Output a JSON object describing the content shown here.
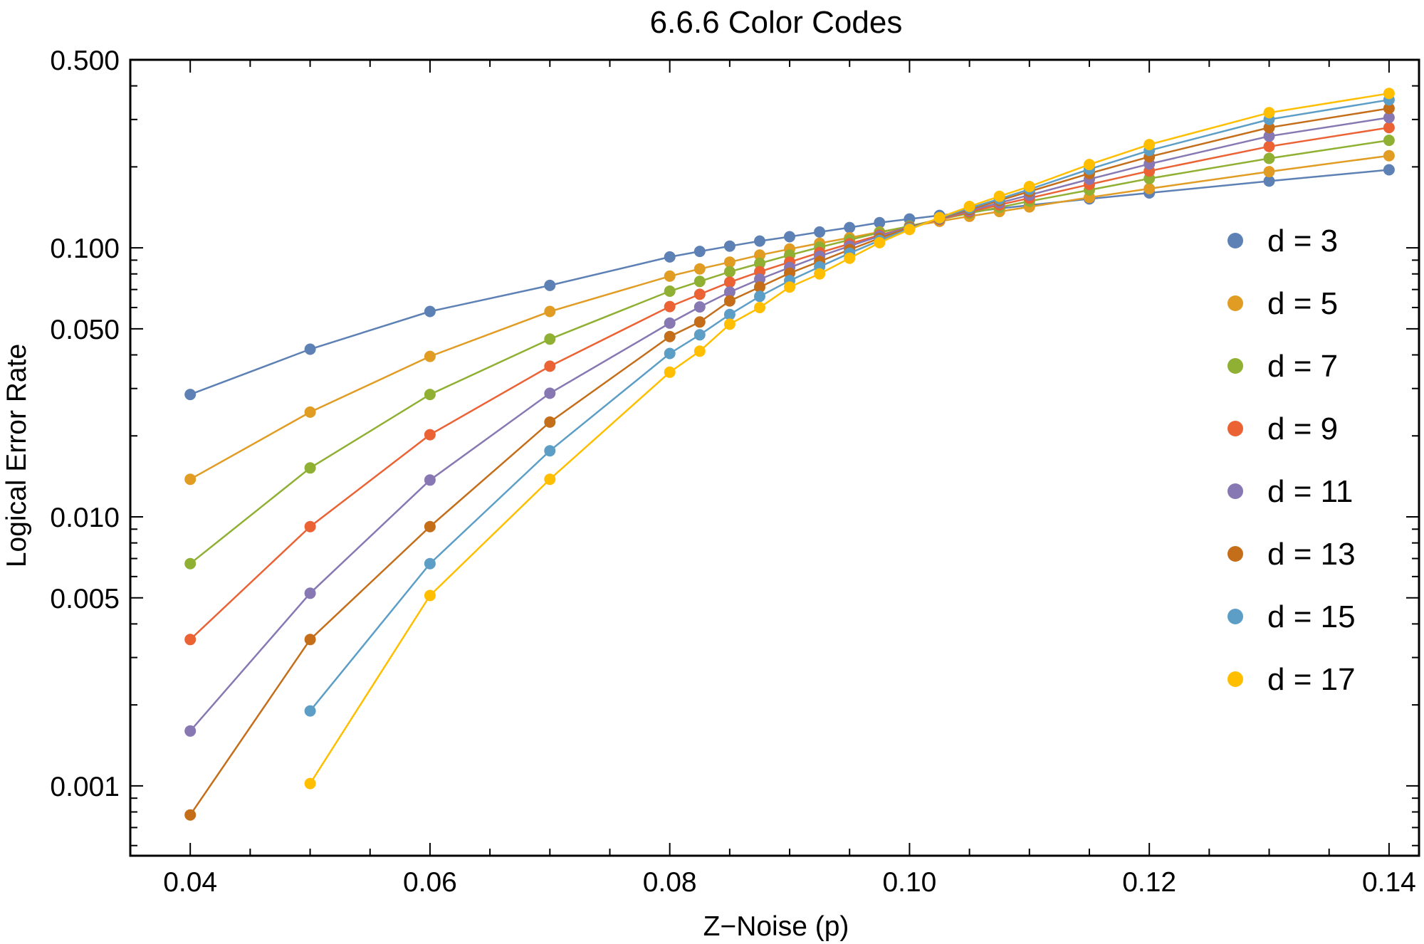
{
  "chart_data": {
    "type": "line",
    "title": "6.6.6 Color Codes",
    "xlabel": "Z−Noise (p)",
    "ylabel": "Logical Error Rate",
    "xscale": "linear",
    "yscale": "log",
    "xlim": [
      0.035,
      0.1425
    ],
    "ylim": [
      0.00055,
      0.5
    ],
    "grid": false,
    "legend_position": "right",
    "x_ticks": [
      {
        "value": 0.04,
        "label": "0.04"
      },
      {
        "value": 0.06,
        "label": "0.06"
      },
      {
        "value": 0.08,
        "label": "0.08"
      },
      {
        "value": 0.1,
        "label": "0.10"
      },
      {
        "value": 0.12,
        "label": "0.12"
      },
      {
        "value": 0.14,
        "label": "0.14"
      }
    ],
    "y_ticks": [
      {
        "value": 0.5,
        "label": "0.500"
      },
      {
        "value": 0.1,
        "label": "0.100"
      },
      {
        "value": 0.05,
        "label": "0.050"
      },
      {
        "value": 0.01,
        "label": "0.010"
      },
      {
        "value": 0.005,
        "label": "0.005"
      },
      {
        "value": 0.001,
        "label": "0.001"
      }
    ],
    "series": [
      {
        "name": "d = 3",
        "color": "#5e81b5",
        "x": [
          0.04,
          0.05,
          0.06,
          0.07,
          0.08,
          0.0825,
          0.085,
          0.0875,
          0.09,
          0.0925,
          0.095,
          0.0975,
          0.1,
          0.1025,
          0.105,
          0.1075,
          0.11,
          0.115,
          0.12,
          0.13,
          0.14
        ],
        "y": [
          0.0285,
          0.042,
          0.058,
          0.0725,
          0.0925,
          0.097,
          0.1015,
          0.106,
          0.11,
          0.1145,
          0.119,
          0.124,
          0.128,
          0.132,
          0.136,
          0.14,
          0.144,
          0.152,
          0.16,
          0.177,
          0.195
        ]
      },
      {
        "name": "d = 5",
        "color": "#e19c24",
        "x": [
          0.04,
          0.05,
          0.06,
          0.07,
          0.08,
          0.0825,
          0.085,
          0.0875,
          0.09,
          0.0925,
          0.095,
          0.0975,
          0.1,
          0.1025,
          0.105,
          0.1075,
          0.11,
          0.115,
          0.12,
          0.13,
          0.14
        ],
        "y": [
          0.0138,
          0.0245,
          0.0395,
          0.058,
          0.0785,
          0.0835,
          0.0885,
          0.094,
          0.099,
          0.104,
          0.109,
          0.1145,
          0.12,
          0.1255,
          0.131,
          0.1365,
          0.142,
          0.154,
          0.166,
          0.192,
          0.22
        ]
      },
      {
        "name": "d = 7",
        "color": "#8fb032",
        "x": [
          0.04,
          0.05,
          0.06,
          0.07,
          0.08,
          0.0825,
          0.085,
          0.0875,
          0.09,
          0.0925,
          0.095,
          0.0975,
          0.1,
          0.1025,
          0.105,
          0.1075,
          0.11,
          0.115,
          0.12,
          0.13,
          0.14
        ],
        "y": [
          0.0067,
          0.0152,
          0.0285,
          0.0458,
          0.069,
          0.075,
          0.0815,
          0.0875,
          0.094,
          0.1005,
          0.107,
          0.114,
          0.1205,
          0.1275,
          0.1345,
          0.1415,
          0.149,
          0.164,
          0.181,
          0.215,
          0.251
        ]
      },
      {
        "name": "d = 9",
        "color": "#eb6235",
        "x": [
          0.04,
          0.05,
          0.06,
          0.07,
          0.08,
          0.0825,
          0.085,
          0.0875,
          0.09,
          0.0925,
          0.095,
          0.0975,
          0.1,
          0.1025,
          0.105,
          0.1075,
          0.11,
          0.115,
          0.12,
          0.13,
          0.14
        ],
        "y": [
          0.0035,
          0.0092,
          0.0202,
          0.0363,
          0.0605,
          0.0672,
          0.0745,
          0.0815,
          0.0885,
          0.096,
          0.1035,
          0.1115,
          0.1195,
          0.1275,
          0.136,
          0.1445,
          0.153,
          0.172,
          0.193,
          0.238,
          0.28
        ]
      },
      {
        "name": "d = 11",
        "color": "#8778b3",
        "x": [
          0.04,
          0.05,
          0.06,
          0.07,
          0.08,
          0.0825,
          0.085,
          0.0875,
          0.09,
          0.0925,
          0.095,
          0.0975,
          0.1,
          0.1025,
          0.105,
          0.1075,
          0.11,
          0.115,
          0.12,
          0.13,
          0.14
        ],
        "y": [
          0.0016,
          0.0052,
          0.0137,
          0.0288,
          0.0525,
          0.0603,
          0.0685,
          0.0765,
          0.0845,
          0.093,
          0.1015,
          0.1105,
          0.1195,
          0.128,
          0.1375,
          0.147,
          0.157,
          0.18,
          0.205,
          0.26,
          0.305
        ]
      },
      {
        "name": "d = 13",
        "color": "#c56e1a",
        "x": [
          0.04,
          0.05,
          0.06,
          0.07,
          0.08,
          0.0825,
          0.085,
          0.0875,
          0.09,
          0.0925,
          0.095,
          0.0975,
          0.1,
          0.1025,
          0.105,
          0.1075,
          0.11,
          0.115,
          0.12,
          0.13,
          0.14
        ],
        "y": [
          0.00078,
          0.0035,
          0.0092,
          0.0225,
          0.0468,
          0.053,
          0.0635,
          0.0715,
          0.0805,
          0.089,
          0.0985,
          0.1085,
          0.119,
          0.1285,
          0.139,
          0.15,
          0.162,
          0.189,
          0.218,
          0.28,
          0.33
        ]
      },
      {
        "name": "d = 15",
        "color": "#5d9ec7",
        "x": [
          0.05,
          0.06,
          0.07,
          0.08,
          0.0825,
          0.085,
          0.0875,
          0.09,
          0.0925,
          0.095,
          0.0975,
          0.1,
          0.1025,
          0.105,
          0.1075,
          0.11,
          0.115,
          0.12,
          0.13,
          0.14
        ],
        "y": [
          0.0019,
          0.0067,
          0.0176,
          0.0405,
          0.0475,
          0.0565,
          0.066,
          0.0755,
          0.085,
          0.0955,
          0.1065,
          0.118,
          0.129,
          0.1405,
          0.152,
          0.165,
          0.196,
          0.23,
          0.3,
          0.355
        ]
      },
      {
        "name": "d = 17",
        "color": "#ffbf00",
        "x": [
          0.05,
          0.06,
          0.07,
          0.08,
          0.0825,
          0.085,
          0.0875,
          0.09,
          0.0925,
          0.095,
          0.0975,
          0.1,
          0.1025,
          0.105,
          0.1075,
          0.11,
          0.115,
          0.12,
          0.13,
          0.14
        ],
        "y": [
          0.00102,
          0.0051,
          0.0138,
          0.0345,
          0.0413,
          0.052,
          0.06,
          0.0715,
          0.08,
          0.0915,
          0.1045,
          0.117,
          0.1295,
          0.1425,
          0.1555,
          0.169,
          0.204,
          0.242,
          0.318,
          0.375
        ]
      }
    ]
  }
}
